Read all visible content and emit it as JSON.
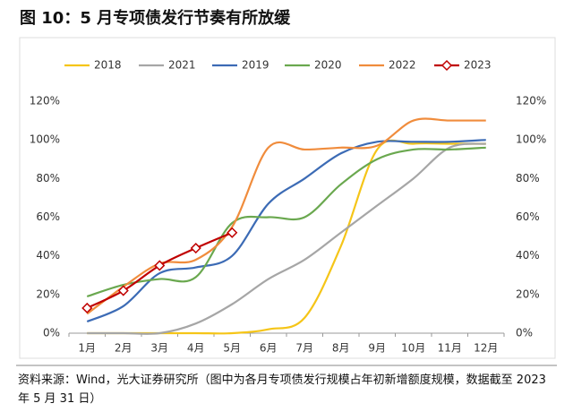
{
  "chart_data": {
    "type": "line",
    "title": "图 10：5 月专项债发行节奏有所放缓",
    "note": "资料来源：Wind，光大证券研究所（图中为各月专项债发行规模占年初新增额度规模，数据截至 2023 年 5 月 31 日）",
    "categories": [
      "1月",
      "2月",
      "3月",
      "4月",
      "5月",
      "6月",
      "7月",
      "8月",
      "9月",
      "10月",
      "11月",
      "12月"
    ],
    "series": [
      {
        "name": "2018",
        "color": "#f5c518",
        "values": [
          0,
          0,
          0,
          0,
          0,
          2,
          8,
          45,
          95,
          98,
          98,
          98
        ]
      },
      {
        "name": "2021",
        "color": "#a6a6a6",
        "values": [
          0,
          0,
          0,
          5,
          15,
          28,
          38,
          52,
          66,
          80,
          96,
          98
        ]
      },
      {
        "name": "2019",
        "color": "#3c6bb5",
        "values": [
          6,
          14,
          31,
          34,
          40,
          67,
          80,
          93,
          99,
          99,
          99,
          100
        ]
      },
      {
        "name": "2020",
        "color": "#6aa84f",
        "values": [
          19,
          25,
          28,
          29,
          57,
          60,
          60,
          77,
          90,
          95,
          95,
          96
        ]
      },
      {
        "name": "2022",
        "color": "#f08c3c",
        "values": [
          10,
          24,
          36,
          38,
          55,
          96,
          95,
          96,
          97,
          110,
          110,
          110
        ]
      },
      {
        "name": "2023",
        "color": "#c00000",
        "markers": true,
        "values": [
          13,
          22,
          35,
          44,
          52,
          null,
          null,
          null,
          null,
          null,
          null,
          null
        ]
      }
    ],
    "ylim": [
      0,
      120
    ],
    "yticks": [
      {
        "value": 0,
        "label": "0%"
      },
      {
        "value": 20,
        "label": "20%"
      },
      {
        "value": 40,
        "label": "40%"
      },
      {
        "value": 60,
        "label": "60%"
      },
      {
        "value": 80,
        "label": "80%"
      },
      {
        "value": 100,
        "label": "100%"
      },
      {
        "value": 120,
        "label": "120%"
      }
    ],
    "y2lim": [
      0,
      120
    ],
    "y2ticks": [
      {
        "value": 0,
        "label": "0%"
      },
      {
        "value": 20,
        "label": "20%"
      },
      {
        "value": 40,
        "label": "40%"
      },
      {
        "value": 60,
        "label": "60%"
      },
      {
        "value": 80,
        "label": "80%"
      },
      {
        "value": 100,
        "label": "100%"
      },
      {
        "value": 120,
        "label": "120%"
      }
    ],
    "legend": "top"
  }
}
